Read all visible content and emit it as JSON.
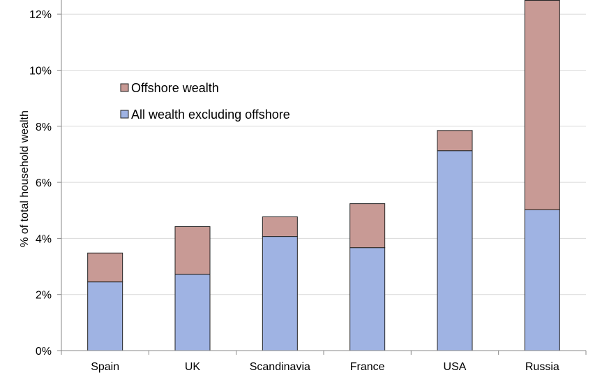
{
  "chart_data": {
    "type": "bar",
    "stacked": true,
    "title": "",
    "xlabel": "",
    "ylabel": "% of total household wealth",
    "categories": [
      "Spain",
      "UK",
      "Scandinavia",
      "France",
      "USA",
      "Russia"
    ],
    "ylim": [
      0,
      12.5
    ],
    "yticks": [
      "0%",
      "2%",
      "4%",
      "6%",
      "8%",
      "10%",
      "12%"
    ],
    "ytick_values": [
      0,
      2,
      4,
      6,
      8,
      10,
      12
    ],
    "grid": true,
    "legend_position": "upper-left",
    "series": [
      {
        "name": "All wealth excluding offshore",
        "color": "#9FB3E3",
        "values": [
          2.45,
          2.72,
          4.07,
          3.67,
          7.13,
          5.02
        ]
      },
      {
        "name": "Offshore wealth",
        "color": "#C89A95",
        "values": [
          1.03,
          1.7,
          0.7,
          1.57,
          0.72,
          7.47
        ]
      }
    ],
    "legend": [
      {
        "label": "Offshore wealth",
        "color": "#C89A95"
      },
      {
        "label": "All wealth excluding offshore",
        "color": "#9FB3E3"
      }
    ]
  }
}
